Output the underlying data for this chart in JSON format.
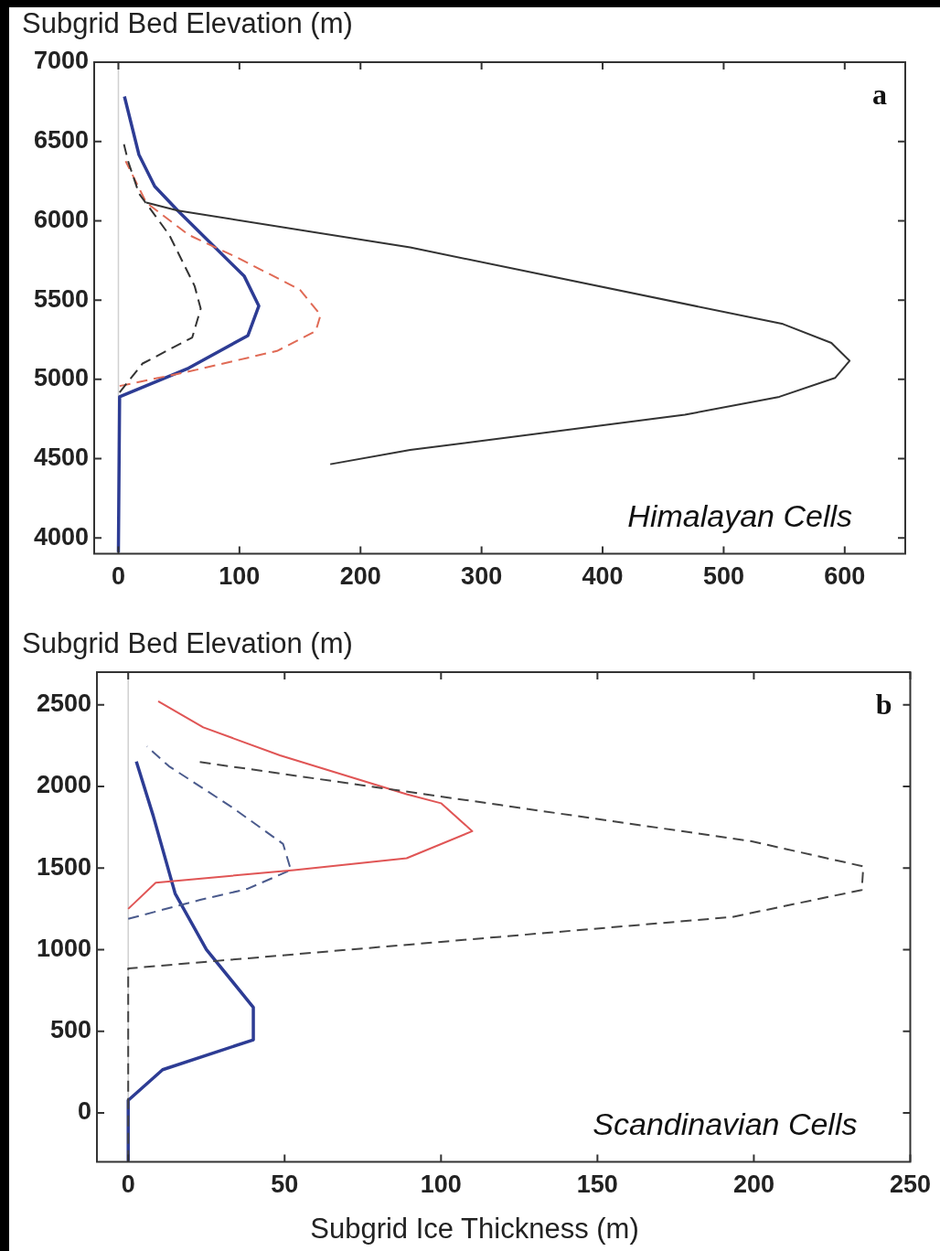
{
  "chart_data": [
    {
      "type": "line",
      "ylabel": "Subgrid Bed Elevation (m)",
      "annotations": [
        "a",
        "Himalayan Cells"
      ],
      "xlim": [
        -20,
        650
      ],
      "ylim": [
        3900,
        7000
      ],
      "xticks": [
        0,
        100,
        200,
        300,
        400,
        500,
        600
      ],
      "yticks": [
        4000,
        4500,
        5000,
        5500,
        6000,
        6500,
        7000
      ],
      "grid": false,
      "legend": false,
      "marker": "none",
      "ref_lines": [
        {
          "axis": "x",
          "value": 0,
          "color": "#d0d0d0"
        }
      ],
      "series": [
        {
          "color": "#333333",
          "line_style": "solid",
          "x": [
            175,
            241,
            468,
            546,
            592,
            604,
            589,
            549,
            241,
            49,
            23
          ],
          "values": [
            4465,
            4555,
            4777,
            4890,
            5009,
            5117,
            5230,
            5349,
            5832,
            6064,
            6115
          ]
        },
        {
          "color": "#333333",
          "line_style": "dashed",
          "x": [
            1,
            20,
            61,
            68,
            63,
            42,
            17,
            8,
            4
          ],
          "values": [
            4918,
            5100,
            5264,
            5446,
            5588,
            5911,
            6172,
            6376,
            6501
          ]
        },
        {
          "color": "#e06a55",
          "line_style": "dashed",
          "x": [
            1,
            58,
            131,
            163,
            167,
            150,
            98,
            58,
            23,
            6
          ],
          "values": [
            4958,
            5049,
            5179,
            5304,
            5406,
            5565,
            5769,
            5911,
            6115,
            6376
          ]
        },
        {
          "color": "#2d3c94",
          "line_style": "solid",
          "x": [
            0,
            1,
            58,
            107,
            116,
            104,
            49,
            30,
            17,
            5
          ],
          "values": [
            3910,
            4890,
            5071,
            5276,
            5463,
            5650,
            6064,
            6217,
            6416,
            6784
          ]
        }
      ]
    },
    {
      "type": "line",
      "ylabel": "Subgrid Bed Elevation (m)",
      "xlabel": "Subgrid Ice Thickness (m)",
      "annotations": [
        "b",
        "Scandinavian Cells"
      ],
      "xlim": [
        -10,
        250
      ],
      "ylim": [
        -300,
        2700
      ],
      "xticks": [
        0,
        50,
        100,
        150,
        200,
        250
      ],
      "yticks": [
        0,
        500,
        1000,
        1500,
        2000,
        2500
      ],
      "grid": false,
      "legend": false,
      "marker": "none",
      "ref_lines": [
        {
          "axis": "x",
          "value": 0,
          "color": "#d0d0d0"
        }
      ],
      "series": [
        {
          "color": "#444444",
          "line_style": "dashed",
          "x": [
            0,
            0,
            119,
            193,
            234.5,
            235,
            199,
            119,
            22
          ],
          "values": [
            -295,
            885,
            1079,
            1200,
            1366,
            1510,
            1665,
            1886,
            2152
          ]
        },
        {
          "color": "#e05555",
          "line_style": "solid",
          "x": [
            0,
            8.8,
            53,
            89,
            110,
            100,
            89,
            48.5,
            24,
            9.6
          ],
          "values": [
            1250,
            1410,
            1488,
            1560,
            1726,
            1897,
            1952,
            2190,
            2362,
            2522
          ]
        },
        {
          "color": "#4a5a8c",
          "line_style": "dashed",
          "x": [
            0,
            23,
            38,
            52,
            49.5,
            33,
            13,
            6
          ],
          "values": [
            1189,
            1305,
            1372,
            1488,
            1648,
            1875,
            2124,
            2245
          ]
        },
        {
          "color": "#2d3c94",
          "line_style": "solid",
          "x": [
            0,
            0,
            11,
            40,
            40,
            25,
            15,
            8,
            2.6
          ],
          "values": [
            -295,
            77,
            265,
            448,
            647,
            1001,
            1344,
            1820,
            2152
          ]
        }
      ]
    }
  ]
}
